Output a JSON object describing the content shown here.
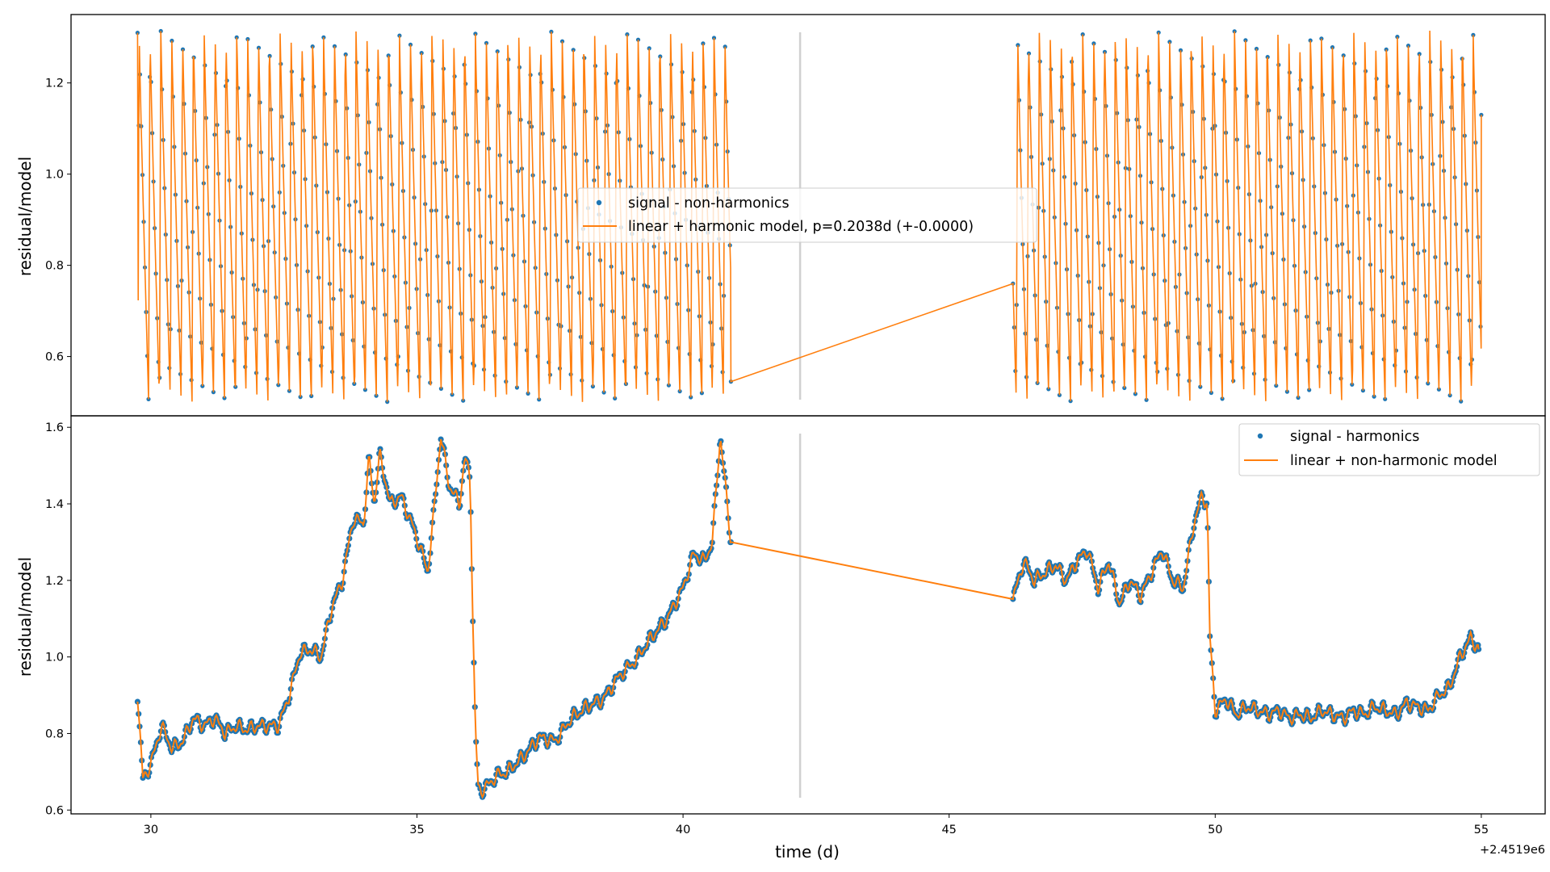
{
  "chart_data": [
    {
      "type": "scatter",
      "panel": "top",
      "title": "",
      "xlabel": "",
      "ylabel": "residual/model",
      "xlim": [
        28.5,
        56.2
      ],
      "ylim": [
        0.47,
        1.35
      ],
      "yticks": [
        0.6,
        0.8,
        1.0,
        1.2
      ],
      "ytick_labels": [
        "0.6",
        "0.8",
        "1.0",
        "1.2"
      ],
      "grid": false,
      "legend_position": "center",
      "gap_marker_x": 42.2,
      "period_d": 0.2038,
      "oscillation": {
        "min": 0.5,
        "max": 1.315
      },
      "segments": [
        {
          "x_start": 29.75,
          "x_end": 40.9,
          "start_value": 1.31,
          "end_value": 0.545
        },
        {
          "x_start": 46.2,
          "x_end": 55.0,
          "start_value": 0.76,
          "end_value": 1.13
        }
      ],
      "series": [
        {
          "name": "signal - non-harmonics",
          "kind": "points",
          "color": "#1f77b4"
        },
        {
          "name": "linear + harmonic model, p=0.2038d (+-0.0000)",
          "kind": "line",
          "color": "#ff7f0e"
        }
      ]
    },
    {
      "type": "scatter",
      "panel": "bottom",
      "title": "",
      "xlabel": "time (d)",
      "ylabel": "residual/model",
      "x_offset_label": "+2.4519e6",
      "xlim": [
        28.5,
        56.2
      ],
      "ylim": [
        0.59,
        1.63
      ],
      "xticks": [
        30,
        35,
        40,
        45,
        50,
        55
      ],
      "xtick_labels": [
        "30",
        "35",
        "40",
        "45",
        "50",
        "55"
      ],
      "yticks": [
        0.6,
        0.8,
        1.0,
        1.2,
        1.4,
        1.6
      ],
      "ytick_labels": [
        "0.6",
        "0.8",
        "1.0",
        "1.2",
        "1.4",
        "1.6"
      ],
      "grid": false,
      "legend_position": "upper right",
      "gap_marker_x": 42.2,
      "segments": [
        {
          "x": [
            29.75,
            29.85,
            30.0,
            30.2,
            30.4,
            30.6,
            30.8,
            31.0,
            31.2,
            31.4,
            31.6,
            31.8,
            32.0,
            32.2,
            32.4,
            32.6,
            32.8,
            33.0,
            33.2,
            33.4,
            33.6,
            33.8,
            34.0,
            34.1,
            34.2,
            34.3,
            34.5,
            34.7,
            34.9,
            35.1,
            35.2,
            35.3,
            35.45,
            35.6,
            35.8,
            35.9,
            36.0,
            36.05,
            36.1,
            36.15,
            36.2,
            36.3,
            36.5,
            36.7,
            37.0,
            37.3,
            37.6,
            37.9,
            38.2,
            38.5,
            38.8,
            39.1,
            39.4,
            39.7,
            40.0,
            40.2,
            40.4,
            40.55,
            40.7,
            40.9
          ],
          "y": [
            0.9,
            0.68,
            0.72,
            0.82,
            0.76,
            0.78,
            0.84,
            0.82,
            0.84,
            0.8,
            0.82,
            0.81,
            0.82,
            0.82,
            0.82,
            0.9,
            1.01,
            1.02,
            1.0,
            1.13,
            1.2,
            1.36,
            1.35,
            1.52,
            1.4,
            1.53,
            1.4,
            1.42,
            1.35,
            1.27,
            1.22,
            1.35,
            1.58,
            1.45,
            1.4,
            1.52,
            1.47,
            1.1,
            0.8,
            0.66,
            0.65,
            0.66,
            0.69,
            0.7,
            0.74,
            0.79,
            0.78,
            0.84,
            0.87,
            0.89,
            0.95,
            0.99,
            1.05,
            1.1,
            1.18,
            1.27,
            1.25,
            1.3,
            1.58,
            1.3
          ]
        },
        {
          "x": [
            46.2,
            46.4,
            46.6,
            46.8,
            47.0,
            47.2,
            47.4,
            47.6,
            47.8,
            48.0,
            48.2,
            48.4,
            48.6,
            48.8,
            49.0,
            49.2,
            49.4,
            49.6,
            49.75,
            49.85,
            49.9,
            50.0,
            50.2,
            50.4,
            50.6,
            50.8,
            51.0,
            51.2,
            51.4,
            51.6,
            51.8,
            52.0,
            52.2,
            52.4,
            52.6,
            52.8,
            53.0,
            53.2,
            53.4,
            53.6,
            53.8,
            54.0,
            54.2,
            54.4,
            54.6,
            54.8,
            54.95
          ],
          "y": [
            1.15,
            1.25,
            1.2,
            1.22,
            1.24,
            1.2,
            1.25,
            1.28,
            1.18,
            1.25,
            1.14,
            1.2,
            1.16,
            1.22,
            1.28,
            1.2,
            1.18,
            1.35,
            1.42,
            1.4,
            1.05,
            0.86,
            0.89,
            0.85,
            0.87,
            0.86,
            0.85,
            0.86,
            0.84,
            0.85,
            0.84,
            0.86,
            0.85,
            0.84,
            0.86,
            0.85,
            0.87,
            0.86,
            0.85,
            0.88,
            0.87,
            0.86,
            0.9,
            0.92,
            1.0,
            1.05,
            1.02
          ]
        }
      ],
      "series": [
        {
          "name": "signal - harmonics",
          "kind": "points",
          "color": "#1f77b4"
        },
        {
          "name": "linear + non-harmonic model",
          "kind": "line",
          "color": "#ff7f0e"
        }
      ]
    }
  ]
}
